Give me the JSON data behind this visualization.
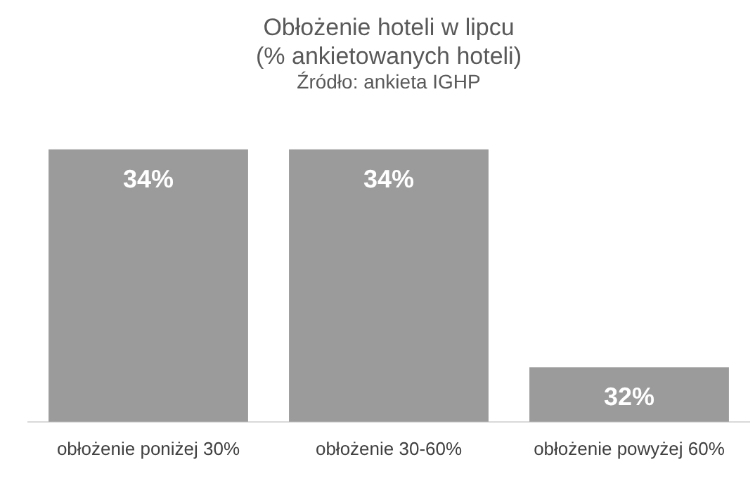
{
  "chart_data": {
    "type": "bar",
    "title": "Obłożenie hoteli w lipcu\n(% ankietowanych hoteli)",
    "subtitle": "Źródło: ankieta IGHP",
    "categories": [
      "obłożenie poniżej 30%",
      "obłożenie 30-60%",
      "obłożenie powyżej 60%"
    ],
    "values": [
      34,
      34,
      32
    ],
    "color": "#9b9b9b",
    "tick_labels": "x",
    "data_labels": true,
    "value_labels": [
      "34%",
      "34%",
      "32%"
    ],
    "grid": false,
    "legend": false
  }
}
